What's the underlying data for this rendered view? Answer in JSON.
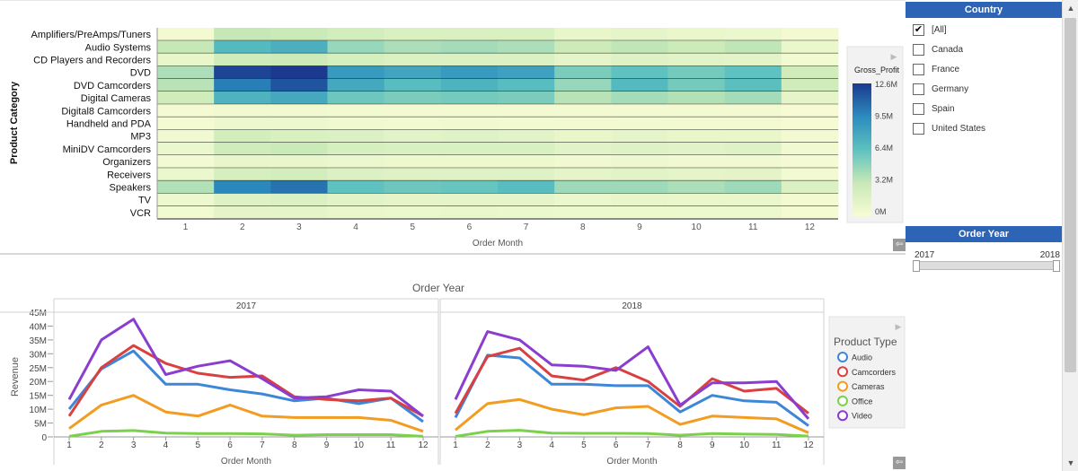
{
  "colors": {
    "heat_low": "#f5fbd2",
    "heat_high": "#1b3a8f",
    "audio": "#3d86d8",
    "camcorders": "#d94040",
    "cameras": "#f29c21",
    "office": "#7cd14a",
    "video": "#8a3dcf",
    "panel_header": "#2e64b5"
  },
  "heatmap": {
    "y_title": "Product Category",
    "x_title": "Order Month",
    "legend_title": "Gross_Profit",
    "legend_ticks": [
      "12.6M",
      "9.5M",
      "6.4M",
      "3.2M",
      "0M"
    ]
  },
  "revenue": {
    "title": "Order Year",
    "y_title": "Revenue",
    "x_title": "Order Month",
    "y_ticks": [
      "45M",
      "40M",
      "35M",
      "30M",
      "25M",
      "20M",
      "15M",
      "10M",
      "5M",
      "0"
    ],
    "legend_title": "Product Type"
  },
  "country_filter": {
    "title": "Country",
    "items": [
      {
        "label": "[All]",
        "checked": true
      },
      {
        "label": "Canada",
        "checked": false
      },
      {
        "label": "France",
        "checked": false
      },
      {
        "label": "Germany",
        "checked": false
      },
      {
        "label": "Spain",
        "checked": false
      },
      {
        "label": "United States",
        "checked": false
      }
    ]
  },
  "year_filter": {
    "title": "Order Year",
    "min_label": "2017",
    "max_label": "2018",
    "selected_range": [
      2017,
      2018
    ]
  },
  "chart_data": [
    {
      "type": "heatmap",
      "xlabel": "Order Month",
      "ylabel": "Product Category",
      "legend_title": "Gross_Profit",
      "color_range": [
        0,
        12.6
      ],
      "x": [
        1,
        2,
        3,
        4,
        5,
        6,
        7,
        8,
        9,
        10,
        11,
        12
      ],
      "y": [
        "Amplifiers/PreAmps/Tuners",
        "Audio Systems",
        "CD Players and Recorders",
        "DVD",
        "DVD Camcorders",
        "Digital Cameras",
        "Digital8 Camcorders",
        "Handheld and PDA",
        "MP3",
        "MiniDV Camcorders",
        "Organizers",
        "Receivers",
        "Speakers",
        "TV",
        "VCR"
      ],
      "values": [
        [
          0.3,
          3.2,
          3.0,
          2.4,
          2.0,
          2.0,
          2.0,
          1.0,
          1.2,
          0.9,
          0.8,
          0.3
        ],
        [
          3.2,
          6.8,
          7.4,
          4.6,
          4.0,
          4.2,
          4.0,
          2.8,
          3.4,
          2.8,
          3.4,
          0.9
        ],
        [
          1.0,
          2.6,
          2.8,
          2.2,
          1.8,
          1.8,
          1.8,
          1.2,
          1.6,
          1.4,
          1.3,
          0.4
        ],
        [
          4.0,
          12.2,
          12.6,
          8.6,
          8.0,
          8.6,
          8.2,
          5.4,
          6.2,
          5.6,
          6.2,
          2.6
        ],
        [
          3.6,
          10.0,
          11.6,
          7.8,
          6.6,
          7.2,
          6.6,
          4.6,
          6.8,
          5.6,
          6.4,
          2.6
        ],
        [
          2.6,
          7.2,
          7.8,
          5.8,
          5.4,
          5.6,
          5.4,
          3.6,
          4.2,
          3.8,
          4.2,
          1.2
        ],
        [
          0.2,
          0.5,
          0.5,
          0.4,
          0.3,
          0.3,
          0.3,
          0.3,
          0.3,
          0.3,
          0.3,
          0.1
        ],
        [
          0.2,
          0.6,
          0.6,
          0.5,
          0.4,
          0.5,
          0.4,
          0.3,
          0.4,
          0.3,
          0.3,
          0.1
        ],
        [
          0.5,
          2.4,
          2.0,
          1.8,
          1.4,
          1.6,
          1.4,
          1.0,
          1.2,
          1.0,
          1.0,
          0.3
        ],
        [
          0.8,
          2.6,
          3.0,
          2.2,
          2.0,
          2.0,
          2.0,
          1.4,
          1.6,
          1.4,
          1.6,
          0.5
        ],
        [
          0.4,
          1.0,
          1.0,
          0.8,
          0.7,
          0.7,
          0.7,
          0.5,
          0.6,
          0.5,
          0.5,
          0.2
        ],
        [
          0.8,
          2.2,
          2.4,
          1.8,
          1.6,
          1.6,
          1.6,
          1.2,
          1.4,
          1.2,
          1.3,
          0.4
        ],
        [
          3.8,
          9.6,
          10.4,
          6.2,
          5.8,
          6.0,
          6.6,
          4.4,
          4.4,
          4.0,
          4.4,
          1.8
        ],
        [
          0.6,
          1.6,
          1.8,
          1.4,
          1.2,
          1.2,
          1.2,
          0.8,
          1.0,
          0.9,
          0.9,
          0.3
        ],
        [
          0.4,
          1.2,
          1.2,
          0.9,
          0.8,
          0.9,
          0.8,
          0.6,
          0.7,
          0.6,
          0.6,
          0.2
        ]
      ]
    },
    {
      "type": "line",
      "title": "Order Year",
      "xlabel": "Order Month",
      "ylabel": "Revenue",
      "ylim": [
        0,
        45
      ],
      "x": [
        1,
        2,
        3,
        4,
        5,
        6,
        7,
        8,
        9,
        10,
        11,
        12
      ],
      "facets": [
        "2017",
        "2018"
      ],
      "legend_title": "Product Type",
      "series": [
        {
          "name": "Audio",
          "color": "#3d86d8",
          "values_by_facet": [
            [
              10,
              24.5,
              31,
              19,
              19,
              17,
              15.5,
              13,
              14,
              12,
              14,
              5.5
            ],
            [
              7,
              29.5,
              28.5,
              19,
              19,
              18.5,
              18.5,
              9,
              15,
              13,
              12.5,
              4
            ]
          ]
        },
        {
          "name": "Camcorders",
          "color": "#d94040",
          "values_by_facet": [
            [
              7.5,
              25,
              33,
              26.5,
              23,
              21.5,
              22,
              14.5,
              13.5,
              13,
              14,
              7.5
            ],
            [
              8.5,
              29,
              32,
              22,
              20.5,
              25,
              20,
              11,
              21,
              16.5,
              17.5,
              8.5
            ]
          ]
        },
        {
          "name": "Cameras",
          "color": "#f29c21",
          "values_by_facet": [
            [
              3,
              11.5,
              15,
              9,
              7.5,
              11.5,
              7.5,
              7,
              7,
              7,
              6,
              2
            ],
            [
              2.5,
              12,
              13.5,
              10,
              8,
              10.5,
              11,
              4.5,
              7.5,
              7,
              6.5,
              1.5
            ]
          ]
        },
        {
          "name": "Office",
          "color": "#7cd14a",
          "values_by_facet": [
            [
              0.2,
              2,
              2.3,
              1.4,
              1.2,
              1.2,
              1.1,
              0.6,
              0.8,
              0.8,
              0.8,
              0.2
            ],
            [
              0.2,
              2,
              2.4,
              1.4,
              1.3,
              1.3,
              1.2,
              0.6,
              1.2,
              1,
              0.9,
              0.3
            ]
          ]
        },
        {
          "name": "Video",
          "color": "#8a3dcf",
          "values_by_facet": [
            [
              13.5,
              35,
              42.5,
              22.5,
              25.5,
              27.5,
              21,
              14,
              14.5,
              17,
              16.5,
              7.5
            ],
            [
              13.5,
              38,
              35,
              26,
              25.5,
              24,
              32.5,
              11.5,
              19.5,
              19.5,
              20,
              6.5
            ]
          ]
        }
      ]
    }
  ]
}
